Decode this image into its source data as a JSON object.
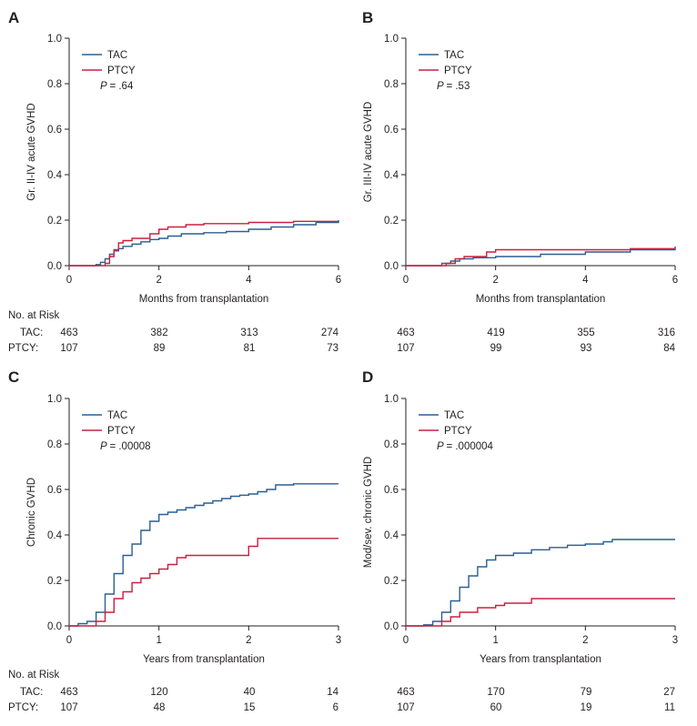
{
  "chart_data": [
    {
      "panel": "A",
      "type": "line",
      "step": true,
      "xlabel": "Months from transplantation",
      "ylabel": "Gr. II-IV acute GVHD",
      "xlim": [
        0,
        6
      ],
      "ylim": [
        0,
        1.0
      ],
      "xticks": [
        "0",
        "2",
        "4",
        "6"
      ],
      "yticks": [
        "0.0",
        "0.2",
        "0.4",
        "0.6",
        "0.8",
        "1.0"
      ],
      "legend": {
        "position": "top-left",
        "p_label": "P",
        "p_value": "= .64"
      },
      "series": [
        {
          "name": "TAC",
          "color": "#2b5f91",
          "x": [
            0,
            0.5,
            0.6,
            0.7,
            0.8,
            0.9,
            1.0,
            1.1,
            1.2,
            1.4,
            1.6,
            1.8,
            2.0,
            2.2,
            2.5,
            3.0,
            3.5,
            4.0,
            4.5,
            5.0,
            5.5,
            6.0
          ],
          "y": [
            0,
            0,
            0.005,
            0.015,
            0.03,
            0.05,
            0.065,
            0.075,
            0.085,
            0.095,
            0.105,
            0.115,
            0.12,
            0.13,
            0.14,
            0.145,
            0.15,
            0.16,
            0.17,
            0.18,
            0.19,
            0.2
          ]
        },
        {
          "name": "PTCY",
          "color": "#c8203f",
          "x": [
            0,
            0.6,
            0.8,
            0.9,
            1.0,
            1.1,
            1.2,
            1.4,
            1.8,
            2.0,
            2.2,
            2.6,
            3.0,
            4.0,
            4.5,
            5.0,
            6.0
          ],
          "y": [
            0,
            0,
            0.01,
            0.04,
            0.07,
            0.1,
            0.11,
            0.12,
            0.14,
            0.16,
            0.17,
            0.18,
            0.185,
            0.19,
            0.19,
            0.195,
            0.195
          ]
        }
      ],
      "risk_table": {
        "header": "No. at Risk",
        "rows": [
          {
            "label": "TAC:",
            "values": [
              "463",
              "382",
              "313",
              "274"
            ]
          },
          {
            "label": "PTCY:",
            "values": [
              "107",
              "89",
              "81",
              "73"
            ]
          }
        ]
      }
    },
    {
      "panel": "B",
      "type": "line",
      "step": true,
      "xlabel": "Months from transplantation",
      "ylabel": "Gr. III-IV acute GVHD",
      "xlim": [
        0,
        6
      ],
      "ylim": [
        0,
        1.0
      ],
      "xticks": [
        "0",
        "2",
        "4",
        "6"
      ],
      "yticks": [
        "0.0",
        "0.2",
        "0.4",
        "0.6",
        "0.8",
        "1.0"
      ],
      "legend": {
        "position": "top-left",
        "p_label": "P",
        "p_value": "= .53"
      },
      "series": [
        {
          "name": "TAC",
          "color": "#2b5f91",
          "x": [
            0,
            0.6,
            0.8,
            1.0,
            1.2,
            1.5,
            2.0,
            3.0,
            4.0,
            5.0,
            6.0
          ],
          "y": [
            0,
            0,
            0.01,
            0.02,
            0.03,
            0.035,
            0.04,
            0.05,
            0.06,
            0.07,
            0.085
          ]
        },
        {
          "name": "PTCY",
          "color": "#c8203f",
          "x": [
            0,
            0.7,
            0.9,
            1.1,
            1.3,
            1.8,
            2.0,
            3.0,
            4.0,
            5.0,
            6.0
          ],
          "y": [
            0,
            0,
            0.01,
            0.03,
            0.04,
            0.06,
            0.07,
            0.07,
            0.07,
            0.075,
            0.075
          ]
        }
      ],
      "risk_table": {
        "header": "",
        "rows": [
          {
            "label": "",
            "values": [
              "463",
              "419",
              "355",
              "316"
            ]
          },
          {
            "label": "",
            "values": [
              "107",
              "99",
              "93",
              "84"
            ]
          }
        ]
      }
    },
    {
      "panel": "C",
      "type": "line",
      "step": true,
      "xlabel": "Years from transplantation",
      "ylabel": "Chronic GVHD",
      "xlim": [
        0,
        3
      ],
      "ylim": [
        0,
        1.0
      ],
      "xticks": [
        "0",
        "1",
        "2",
        "3"
      ],
      "yticks": [
        "0.0",
        "0.2",
        "0.4",
        "0.6",
        "0.8",
        "1.0"
      ],
      "legend": {
        "position": "top-left",
        "p_label": "P",
        "p_value": "= .00008"
      },
      "series": [
        {
          "name": "TAC",
          "color": "#2b5f91",
          "x": [
            0,
            0.1,
            0.2,
            0.3,
            0.4,
            0.5,
            0.6,
            0.7,
            0.8,
            0.9,
            1.0,
            1.1,
            1.2,
            1.3,
            1.4,
            1.5,
            1.6,
            1.7,
            1.8,
            1.9,
            2.0,
            2.1,
            2.2,
            2.3,
            2.5,
            3.0
          ],
          "y": [
            0,
            0.01,
            0.02,
            0.06,
            0.14,
            0.23,
            0.31,
            0.36,
            0.42,
            0.46,
            0.49,
            0.5,
            0.51,
            0.52,
            0.53,
            0.54,
            0.55,
            0.56,
            0.57,
            0.575,
            0.58,
            0.59,
            0.6,
            0.62,
            0.625,
            0.625
          ]
        },
        {
          "name": "PTCY",
          "color": "#c8203f",
          "x": [
            0,
            0.2,
            0.3,
            0.4,
            0.5,
            0.6,
            0.7,
            0.8,
            0.9,
            1.0,
            1.1,
            1.2,
            1.3,
            1.4,
            1.8,
            2.0,
            2.1,
            3.0
          ],
          "y": [
            0,
            0,
            0.02,
            0.06,
            0.12,
            0.15,
            0.19,
            0.21,
            0.23,
            0.25,
            0.27,
            0.3,
            0.31,
            0.31,
            0.31,
            0.35,
            0.385,
            0.385
          ]
        }
      ],
      "risk_table": {
        "header": "No. at Risk",
        "rows": [
          {
            "label": "TAC:",
            "values": [
              "463",
              "120",
              "40",
              "14"
            ]
          },
          {
            "label": "PTCY:",
            "values": [
              "107",
              "48",
              "15",
              "6"
            ]
          }
        ]
      }
    },
    {
      "panel": "D",
      "type": "line",
      "step": true,
      "xlabel": "Years from transplantation",
      "ylabel": "Mod/sev. chronic GVHD",
      "xlim": [
        0,
        3
      ],
      "ylim": [
        0,
        1.0
      ],
      "xticks": [
        "0",
        "1",
        "2",
        "3"
      ],
      "yticks": [
        "0.0",
        "0.2",
        "0.4",
        "0.6",
        "0.8",
        "1.0"
      ],
      "legend": {
        "position": "top-left",
        "p_label": "P",
        "p_value": "= .000004"
      },
      "series": [
        {
          "name": "TAC",
          "color": "#2b5f91",
          "x": [
            0,
            0.2,
            0.3,
            0.4,
            0.5,
            0.6,
            0.7,
            0.8,
            0.9,
            1.0,
            1.2,
            1.4,
            1.6,
            1.8,
            2.0,
            2.2,
            2.3,
            2.5,
            3.0
          ],
          "y": [
            0,
            0.005,
            0.02,
            0.06,
            0.11,
            0.17,
            0.22,
            0.26,
            0.29,
            0.31,
            0.32,
            0.335,
            0.345,
            0.355,
            0.36,
            0.37,
            0.38,
            0.38,
            0.38
          ]
        },
        {
          "name": "PTCY",
          "color": "#c8203f",
          "x": [
            0,
            0.3,
            0.4,
            0.5,
            0.6,
            0.8,
            0.9,
            1.0,
            1.1,
            1.3,
            1.4,
            2.0,
            3.0
          ],
          "y": [
            0,
            0,
            0.02,
            0.04,
            0.06,
            0.08,
            0.08,
            0.09,
            0.1,
            0.1,
            0.12,
            0.12,
            0.12
          ]
        }
      ],
      "risk_table": {
        "header": "",
        "rows": [
          {
            "label": "",
            "values": [
              "463",
              "170",
              "79",
              "27"
            ]
          },
          {
            "label": "",
            "values": [
              "107",
              "60",
              "19",
              "11"
            ]
          }
        ]
      }
    }
  ]
}
